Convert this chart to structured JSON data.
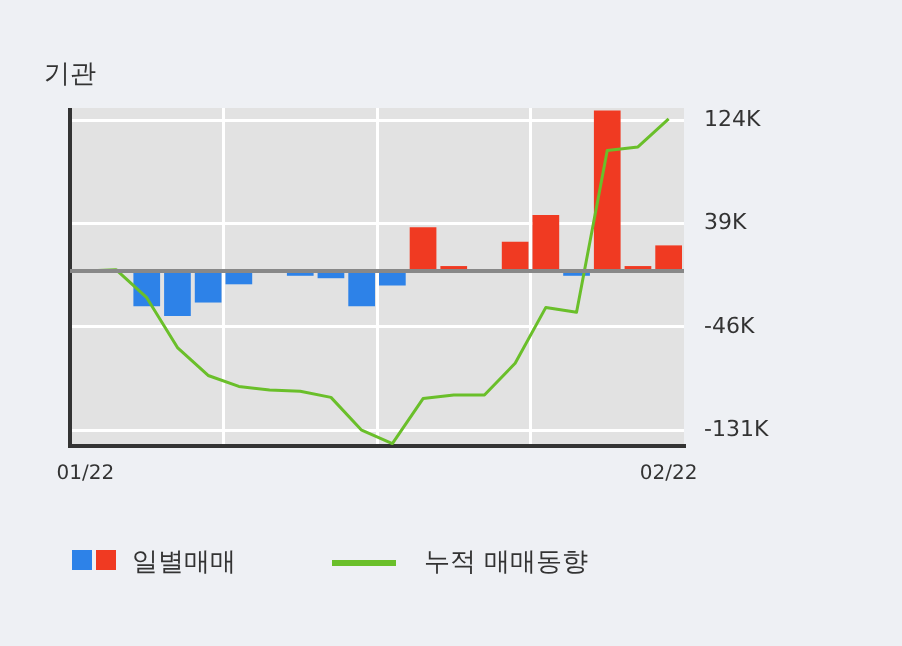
{
  "chart_data": {
    "type": "bar",
    "title": "기관",
    "categories": [
      "01/22",
      null,
      null,
      null,
      null,
      null,
      null,
      null,
      null,
      null,
      null,
      null,
      null,
      null,
      null,
      null,
      null,
      null,
      null,
      "02/22"
    ],
    "series": [
      {
        "name": "일별매매",
        "colors": [
          "#2d82e8",
          "#2d82e8",
          "#2d82e8",
          "#2d82e8",
          "#2d82e8",
          "#2d82e8",
          "#2d82e8",
          "#2d82e8",
          "#2d82e8",
          "#2d82e8",
          "#2d82e8",
          "#f03a22",
          "#f03a22",
          "#2d82e8",
          "#f03a22",
          "#f03a22",
          "#2d82e8",
          "#f03a22",
          "#f03a22",
          "#f03a22"
        ],
        "values": [
          0,
          0,
          -29,
          -37,
          -26,
          -11,
          0,
          -4,
          -6,
          -29,
          -12,
          36,
          4,
          0,
          24,
          46,
          -4,
          132,
          4,
          21
        ]
      },
      {
        "name": "누적 매매동향",
        "type": "line",
        "color": "#6abf2a",
        "values": [
          0,
          1,
          -22,
          -63,
          -86,
          -95,
          -98,
          -99,
          -104,
          -131,
          -142,
          -105,
          -102,
          -102,
          -76,
          -30,
          -34,
          99,
          102,
          125
        ]
      }
    ],
    "ylim": [
      -144,
      134
    ],
    "yticks": [
      {
        "value": 124,
        "label": "124K"
      },
      {
        "value": 39,
        "label": "39K"
      },
      {
        "value": -46,
        "label": "-46K"
      },
      {
        "value": -131,
        "label": "-131K"
      }
    ],
    "ref_lines": [
      {
        "axis": "y",
        "value": 0,
        "color": "#888888"
      }
    ],
    "grid": true,
    "legend": "bottom",
    "marker": "none",
    "line_style": "solid"
  }
}
